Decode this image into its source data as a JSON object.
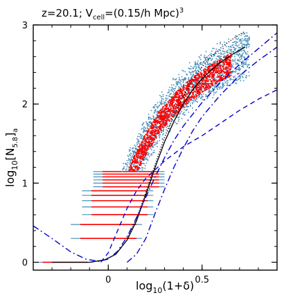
{
  "chart_data": {
    "type": "scatter",
    "title": "z=20.1; V",
    "title_sub": "cell",
    "title_rest": "=(0.15/h Mpc)",
    "title_sup": "3",
    "xlabel": "log",
    "xlabel_sub": "10",
    "xlabel_rest": "(1+δ)",
    "ylabel": "log",
    "ylabel_sub": "10",
    "ylabel_rest": "[N",
    "ylabel_sub2": "5.8",
    "ylabel_rest2": "]",
    "ylabel_sub3": "a",
    "xlim": [
      -0.4,
      0.9
    ],
    "ylim": [
      -0.1,
      3
    ],
    "xticks": [
      {
        "value": 0,
        "label": "0"
      },
      {
        "value": 0.5,
        "label": "0.5"
      }
    ],
    "yticks": [
      {
        "value": 0,
        "label": "0"
      },
      {
        "value": 1,
        "label": "1"
      },
      {
        "value": 2,
        "label": "2"
      },
      {
        "value": 3,
        "label": "3"
      }
    ],
    "scatter_colors": {
      "blue": "#4a8fb8",
      "red": "#ff0000"
    },
    "scatter_ridge": [
      [
        -0.24,
        0.02
      ],
      [
        -0.05,
        0.28
      ],
      [
        0.02,
        0.58
      ],
      [
        0.08,
        0.92
      ],
      [
        0.14,
        1.24
      ],
      [
        0.2,
        1.52
      ],
      [
        0.27,
        1.78
      ],
      [
        0.34,
        1.98
      ],
      [
        0.42,
        2.16
      ],
      [
        0.5,
        2.3
      ],
      [
        0.58,
        2.42
      ],
      [
        0.66,
        2.52
      ],
      [
        0.74,
        2.6
      ]
    ],
    "series": [
      {
        "line": "solid",
        "color": "#000000",
        "points": [
          [
            -0.3,
            0.0
          ],
          [
            -0.1,
            0.0
          ],
          [
            -0.02,
            0.03
          ],
          [
            0.04,
            0.1
          ],
          [
            0.1,
            0.28
          ],
          [
            0.15,
            0.52
          ],
          [
            0.2,
            0.85
          ],
          [
            0.25,
            1.2
          ],
          [
            0.3,
            1.52
          ],
          [
            0.35,
            1.78
          ],
          [
            0.4,
            2.0
          ],
          [
            0.45,
            2.18
          ],
          [
            0.5,
            2.32
          ],
          [
            0.55,
            2.43
          ],
          [
            0.6,
            2.53
          ],
          [
            0.65,
            2.61
          ],
          [
            0.7,
            2.68
          ],
          [
            0.73,
            2.72
          ]
        ]
      },
      {
        "line": "dotted",
        "color": "#000000",
        "points": [
          [
            0.1,
            0.3
          ],
          [
            0.15,
            0.55
          ],
          [
            0.2,
            0.88
          ],
          [
            0.25,
            1.24
          ],
          [
            0.3,
            1.58
          ],
          [
            0.35,
            1.86
          ],
          [
            0.4,
            2.1
          ],
          [
            0.45,
            2.3
          ],
          [
            0.5,
            2.47
          ],
          [
            0.55,
            2.6
          ],
          [
            0.6,
            2.71
          ],
          [
            0.65,
            2.8
          ],
          [
            0.7,
            2.88
          ],
          [
            0.73,
            2.92
          ]
        ]
      },
      {
        "line": "dashed",
        "color": "#0000cc",
        "points": [
          [
            -0.04,
            0.0
          ],
          [
            0.0,
            0.12
          ],
          [
            0.05,
            0.4
          ],
          [
            0.1,
            0.68
          ],
          [
            0.15,
            0.9
          ],
          [
            0.2,
            1.06
          ],
          [
            0.3,
            1.28
          ],
          [
            0.4,
            1.46
          ],
          [
            0.5,
            1.6
          ],
          [
            0.6,
            1.76
          ],
          [
            0.7,
            1.92
          ],
          [
            0.8,
            2.06
          ],
          [
            0.9,
            2.18
          ]
        ]
      },
      {
        "line": "dashdot",
        "color": "#0000cc",
        "points": [
          [
            -0.4,
            0.46
          ],
          [
            -0.3,
            0.3
          ],
          [
            -0.2,
            0.13
          ],
          [
            -0.12,
            0.04
          ],
          [
            -0.05,
            0.01
          ],
          [
            0.0,
            0.04
          ],
          [
            0.05,
            0.14
          ],
          [
            0.1,
            0.32
          ],
          [
            0.15,
            0.56
          ],
          [
            0.2,
            0.82
          ],
          [
            0.25,
            1.08
          ],
          [
            0.3,
            1.32
          ],
          [
            0.35,
            1.54
          ],
          [
            0.4,
            1.72
          ],
          [
            0.5,
            2.02
          ],
          [
            0.6,
            2.28
          ],
          [
            0.7,
            2.5
          ],
          [
            0.8,
            2.7
          ],
          [
            0.9,
            2.9
          ]
        ]
      },
      {
        "line": "dashdot",
        "color": "#0000cc",
        "points": [
          [
            0.1,
            0.0
          ],
          [
            0.15,
            0.1
          ],
          [
            0.2,
            0.3
          ],
          [
            0.25,
            0.62
          ],
          [
            0.3,
            0.92
          ],
          [
            0.35,
            1.2
          ],
          [
            0.4,
            1.44
          ],
          [
            0.45,
            1.66
          ],
          [
            0.5,
            1.84
          ],
          [
            0.6,
            2.12
          ],
          [
            0.7,
            2.36
          ],
          [
            0.8,
            2.55
          ],
          [
            0.9,
            2.72
          ]
        ]
      }
    ]
  }
}
